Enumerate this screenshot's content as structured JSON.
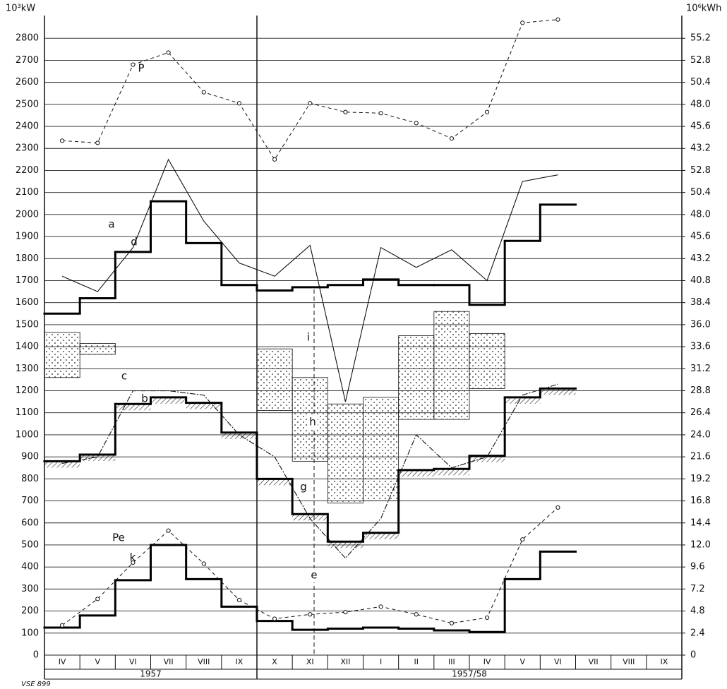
{
  "chart_data": {
    "type": "step",
    "y_label": "10³kW",
    "y2_label": "10⁶kWh",
    "footnote": "VSE 899",
    "categories": [
      "IV",
      "V",
      "VI",
      "VII",
      "VIII",
      "IX",
      "X",
      "XI",
      "XII",
      "I",
      "II",
      "III",
      "IV",
      "V",
      "VI",
      "VII",
      "VIII",
      "IX"
    ],
    "years": [
      "1957",
      "1957/58"
    ],
    "ylim": [
      0,
      2900
    ],
    "yticks": [
      0,
      100,
      200,
      300,
      400,
      500,
      600,
      700,
      800,
      900,
      1000,
      1100,
      1200,
      1300,
      1400,
      1500,
      1600,
      1700,
      1800,
      1900,
      2000,
      2100,
      2200,
      2300,
      2400,
      2500,
      2600,
      2700,
      2800
    ],
    "y2lim": [
      0,
      69.6
    ],
    "y2ticks": [
      0,
      2.4,
      4.8,
      7.2,
      9.6,
      {
        "value": 12,
        "label": "12.0"
      },
      14.4,
      16.8,
      19.2,
      21.6,
      {
        "value": 24,
        "label": "24.0"
      },
      26.4,
      28.8,
      31.2,
      33.6,
      {
        "value": 36,
        "label": "36.0"
      },
      38.4,
      40.8,
      43.2,
      45.6,
      {
        "value": 48,
        "label": "48.0"
      },
      50.4,
      52.8
    ],
    "y2lim_upper": [
      -12,
      57.6
    ],
    "y2ticks_upper": [
      43.2,
      45.6,
      {
        "value": 48,
        "label": "48.0"
      },
      50.4,
      52.8,
      55.2
    ],
    "grid": true,
    "steps": [
      {
        "name": "d",
        "values": [
          1550,
          1620,
          1830,
          2060,
          1870,
          1680,
          1655,
          1670,
          1680,
          1705,
          1680,
          1680,
          1590,
          1880,
          2045,
          null,
          null,
          null
        ]
      },
      {
        "name": "b",
        "values": [
          880,
          910,
          1140,
          1170,
          1145,
          1010,
          800,
          640,
          515,
          555,
          840,
          845,
          905,
          1170,
          1210,
          null,
          null,
          null
        ]
      },
      {
        "name": "k",
        "values": [
          125,
          180,
          340,
          500,
          345,
          220,
          155,
          115,
          120,
          125,
          120,
          112,
          105,
          345,
          470,
          null,
          null,
          null
        ]
      }
    ],
    "curves": [
      {
        "name": "a",
        "values": [
          1720,
          1650,
          1850,
          2250,
          1970,
          1780,
          1720,
          1860,
          1150,
          1850,
          1760,
          1840,
          1700,
          2150,
          2180,
          null,
          null,
          null
        ]
      },
      {
        "name": "c",
        "values": [
          870,
          900,
          1200,
          1200,
          1180,
          1000,
          900,
          620,
          440,
          620,
          1000,
          850,
          900,
          1180,
          1230,
          null,
          null,
          null
        ]
      }
    ],
    "points": [
      {
        "name": "P",
        "values": [
          2335,
          2325,
          2680,
          2735,
          2555,
          2505,
          2250,
          2505,
          2465,
          2460,
          2415,
          2345,
          2465,
          2870,
          2885,
          null,
          null,
          null
        ]
      },
      {
        "name": "Pe",
        "values": [
          135,
          255,
          420,
          565,
          415,
          250,
          165,
          185,
          195,
          220,
          185,
          145,
          170,
          525,
          670,
          null,
          null,
          null
        ]
      }
    ],
    "band": {
      "low": [
        1260,
        1365,
        null,
        null,
        null,
        null,
        1110,
        880,
        690,
        700,
        1070,
        1070,
        1210,
        null,
        null,
        null,
        null,
        null
      ],
      "high": [
        1465,
        1415,
        null,
        null,
        null,
        null,
        1390,
        1260,
        1140,
        1170,
        1450,
        1560,
        1460,
        null,
        null,
        null,
        null,
        null
      ]
    },
    "annotations": [
      "e",
      "g",
      "h",
      "i"
    ]
  }
}
